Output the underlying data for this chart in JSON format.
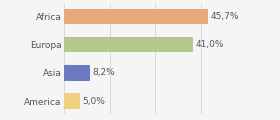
{
  "categories": [
    "Africa",
    "Europa",
    "Asia",
    "America"
  ],
  "values": [
    45.7,
    41.0,
    8.2,
    5.0
  ],
  "labels": [
    "45,7%",
    "41,0%",
    "8,2%",
    "5,0%"
  ],
  "bar_colors": [
    "#e8a87c",
    "#b5c98e",
    "#6b7bbf",
    "#f0d080"
  ],
  "background_color": "#f5f5f5",
  "xlim": [
    0,
    58
  ],
  "label_fontsize": 6.5,
  "tick_fontsize": 6.5,
  "bar_height": 0.55,
  "grid_lines": [
    0,
    14.5,
    29.0,
    43.5,
    58.0
  ]
}
